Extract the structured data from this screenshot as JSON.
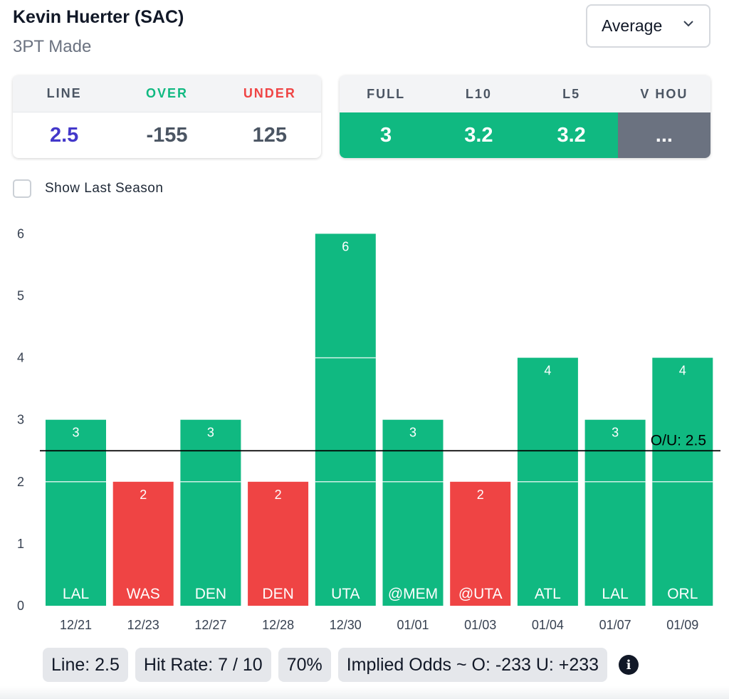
{
  "header": {
    "player": "Kevin Huerter (SAC)",
    "stat": "3PT Made"
  },
  "dropdown": {
    "value": "Average",
    "icon": "chevron-down-icon"
  },
  "lines_card": {
    "headers": [
      "LINE",
      "OVER",
      "UNDER"
    ],
    "values": [
      "2.5",
      "-155",
      "125"
    ]
  },
  "averages_card": {
    "headers": [
      "FULL",
      "L10",
      "L5",
      "V HOU"
    ],
    "values": [
      "3",
      "3.2",
      "3.2",
      "..."
    ]
  },
  "toggle": {
    "label": "Show Last Season",
    "checked": false
  },
  "colors": {
    "hit": "#10b981",
    "miss": "#ef4444",
    "line_value": "#4338ca",
    "neutral": "#6b7280"
  },
  "chart_data": {
    "type": "bar",
    "categories": [
      "12/21",
      "12/23",
      "12/27",
      "12/28",
      "12/30",
      "01/01",
      "01/03",
      "01/04",
      "01/07",
      "01/09"
    ],
    "opponents": [
      "LAL",
      "WAS",
      "DEN",
      "DEN",
      "UTA",
      "@MEM",
      "@UTA",
      "ATL",
      "LAL",
      "ORL"
    ],
    "values": [
      3,
      2,
      3,
      2,
      6,
      3,
      2,
      4,
      3,
      4
    ],
    "yticks": [
      0,
      1,
      2,
      3,
      4,
      5,
      6
    ],
    "ylim": [
      0,
      6
    ],
    "line": 2.5,
    "line_label": "O/U: 2.5",
    "grid": false
  },
  "footer": {
    "line": "Line: 2.5",
    "hit_rate": "Hit Rate: 7 / 10",
    "percent": "70%",
    "implied": "Implied Odds ~ O: -233 U: +233",
    "info_icon": "info-icon"
  }
}
